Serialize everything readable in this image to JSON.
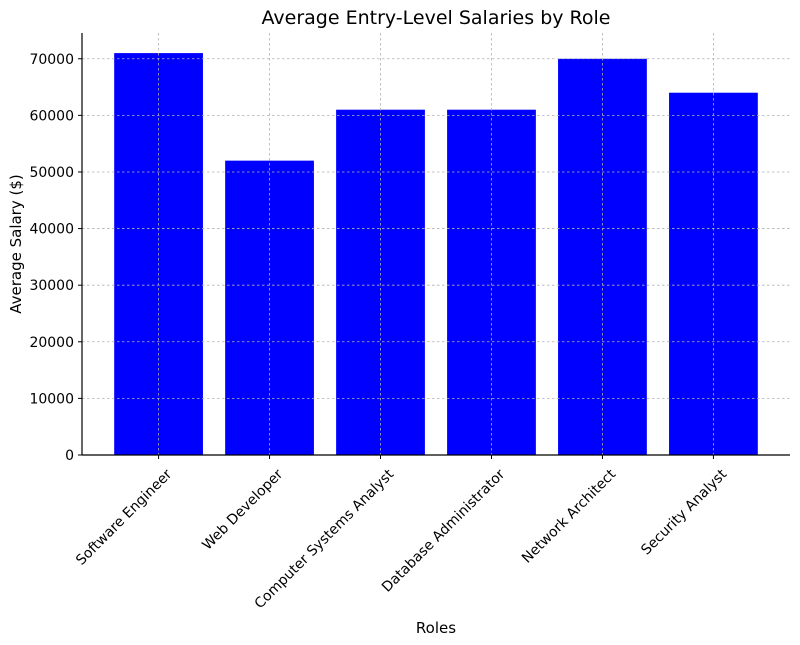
{
  "chart_data": {
    "type": "bar",
    "title": "Average Entry-Level Salaries by Role",
    "xlabel": "Roles",
    "ylabel": "Average Salary ($)",
    "categories": [
      "Software Engineer",
      "Web Developer",
      "Computer Systems Analyst",
      "Database Administrator",
      "Network Architect",
      "Security Analyst"
    ],
    "values": [
      71000,
      52000,
      61000,
      61000,
      70000,
      64000
    ],
    "ylim": [
      0,
      74550
    ],
    "yticks": [
      0,
      10000,
      20000,
      30000,
      40000,
      50000,
      60000,
      70000
    ],
    "ytick_labels": [
      "0",
      "10000",
      "20000",
      "30000",
      "40000",
      "50000",
      "60000",
      "70000"
    ],
    "bar_color": "#0000ff",
    "grid": true
  }
}
